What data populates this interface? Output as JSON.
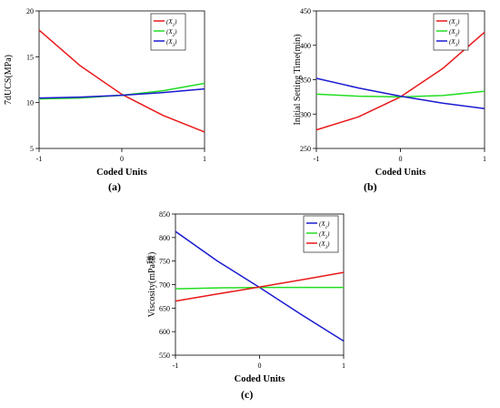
{
  "figure": {
    "colors": {
      "red": "#e8191a",
      "green": "#22dd22",
      "blue": "#1a1ad0",
      "axis": "#000000"
    }
  },
  "chart_data": [
    {
      "id": "a",
      "type": "line",
      "caption": "(a)",
      "xlabel": "Coded Units",
      "ylabel": "7dUCS(MPa)",
      "xlim": [
        -1,
        1
      ],
      "ylim": [
        5,
        20
      ],
      "x_ticks": [
        "-1",
        "0",
        "1"
      ],
      "y_ticks": [
        "5",
        "10",
        "15",
        "20"
      ],
      "x_tick_values": [
        -1,
        0,
        1
      ],
      "y_tick_values": [
        5,
        10,
        15,
        20
      ],
      "legend_position": "top-right",
      "x": [
        -1,
        -0.5,
        0,
        0.5,
        1
      ],
      "series": [
        {
          "name": "(X1)",
          "label_base": "(X",
          "label_sub": "1",
          "color": "red",
          "values": [
            17.9,
            14.0,
            10.9,
            8.6,
            6.8
          ]
        },
        {
          "name": "(X2)",
          "label_base": "(X",
          "label_sub": "2",
          "color": "green",
          "values": [
            10.4,
            10.5,
            10.8,
            11.3,
            12.1
          ]
        },
        {
          "name": "(X3)",
          "label_base": "(X",
          "label_sub": "3",
          "color": "blue",
          "values": [
            10.5,
            10.6,
            10.8,
            11.1,
            11.5
          ]
        }
      ]
    },
    {
      "id": "b",
      "type": "line",
      "caption": "(b)",
      "xlabel": "Coded Units",
      "ylabel": "Initial Setting Time(min)",
      "xlim": [
        -1,
        1
      ],
      "ylim": [
        250,
        450
      ],
      "x_ticks": [
        "-1",
        "0",
        "1"
      ],
      "y_ticks": [
        "250",
        "300",
        "350",
        "400",
        "450"
      ],
      "x_tick_values": [
        -1,
        0,
        1
      ],
      "y_tick_values": [
        250,
        300,
        350,
        400,
        450
      ],
      "legend_position": "top-right",
      "x": [
        -1,
        -0.5,
        0,
        0.5,
        1
      ],
      "series": [
        {
          "name": "(X1)",
          "label_base": "(X",
          "label_sub": "1",
          "color": "red",
          "values": [
            277,
            296,
            325,
            366,
            419
          ]
        },
        {
          "name": "(X2)",
          "label_base": "(X",
          "label_sub": "2",
          "color": "green",
          "values": [
            329,
            326,
            325,
            327,
            333
          ]
        },
        {
          "name": "(X3)",
          "label_base": "(X",
          "label_sub": "3",
          "color": "blue",
          "values": [
            352,
            338,
            326,
            316,
            308
          ]
        }
      ]
    },
    {
      "id": "c",
      "type": "line",
      "caption": "(c)",
      "xlabel": "Coded Units",
      "ylabel": "Viscosity(mPa稴)",
      "xlim": [
        -1,
        1
      ],
      "ylim": [
        550,
        850
      ],
      "x_ticks": [
        "-1",
        "0",
        "1"
      ],
      "y_ticks": [
        "550",
        "600",
        "650",
        "700",
        "750",
        "800",
        "850"
      ],
      "x_tick_values": [
        -1,
        0,
        1
      ],
      "y_tick_values": [
        550,
        600,
        650,
        700,
        750,
        800,
        850
      ],
      "legend_position": "top-right",
      "x": [
        -1,
        -0.5,
        0,
        0.5,
        1
      ],
      "series": [
        {
          "name": "(X1)",
          "label_base": "(X",
          "label_sub": "1",
          "color": "blue",
          "values": [
            813,
            750,
            694,
            636,
            580
          ]
        },
        {
          "name": "(X2)",
          "label_base": "(X",
          "label_sub": "2",
          "color": "green",
          "values": [
            691,
            693,
            694,
            694,
            694
          ]
        },
        {
          "name": "(X3)",
          "label_base": "(X",
          "label_sub": "3",
          "color": "red",
          "values": [
            665,
            680,
            695,
            710,
            726
          ]
        }
      ]
    }
  ]
}
